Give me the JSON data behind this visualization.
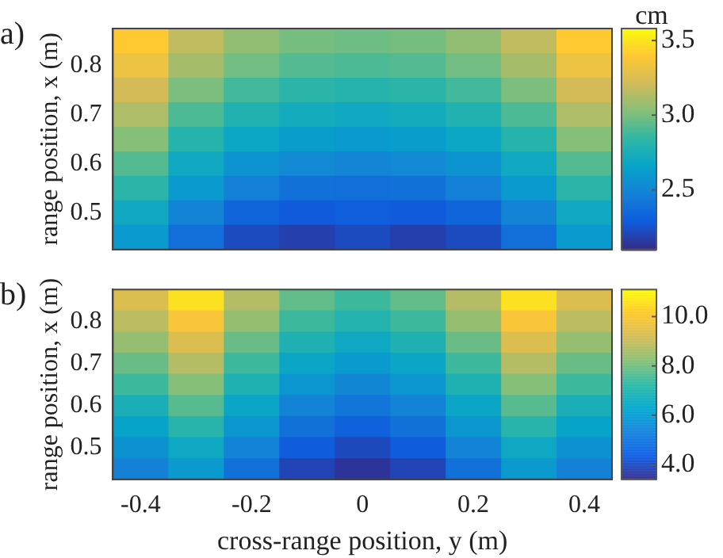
{
  "chart_data": [
    {
      "type": "heatmap",
      "title": "a)",
      "ylabel": "range position, x (m)",
      "clabel": "cm",
      "tick_labels": "y",
      "categories": [
        "-0.4",
        null,
        "-0.2",
        null,
        "0",
        null,
        "0.2",
        null,
        "0.4"
      ],
      "y_categories": [
        null,
        "0.8",
        null,
        "0.7",
        null,
        "0.6",
        null,
        "0.5",
        null
      ],
      "clim": [
        2.1,
        3.58
      ],
      "cticks": [
        {
          "value": 2.5,
          "label": "2.5"
        },
        {
          "value": 3,
          "label": "3.0"
        },
        {
          "value": 3.5,
          "label": "3.5"
        }
      ],
      "cells": [
        [
          3.4,
          3.17,
          3.05,
          2.99,
          2.97,
          2.99,
          3.05,
          3.17,
          3.4
        ],
        [
          3.32,
          3.1,
          2.98,
          2.92,
          2.9,
          2.92,
          2.98,
          3.1,
          3.32
        ],
        [
          3.22,
          3.0,
          2.88,
          2.82,
          2.8,
          2.82,
          2.88,
          3.0,
          3.22
        ],
        [
          3.12,
          2.9,
          2.78,
          2.72,
          2.7,
          2.72,
          2.78,
          2.9,
          3.12
        ],
        [
          3.02,
          2.8,
          2.68,
          2.62,
          2.6,
          2.62,
          2.68,
          2.8,
          3.02
        ],
        [
          2.92,
          2.7,
          2.57,
          2.51,
          2.49,
          2.51,
          2.57,
          2.7,
          2.92
        ],
        [
          2.82,
          2.6,
          2.46,
          2.39,
          2.38,
          2.39,
          2.46,
          2.6,
          2.82
        ],
        [
          2.7,
          2.48,
          2.33,
          2.28,
          2.3,
          2.28,
          2.33,
          2.48,
          2.7
        ],
        [
          2.6,
          2.38,
          2.22,
          2.18,
          2.22,
          2.18,
          2.22,
          2.38,
          2.6
        ]
      ]
    },
    {
      "type": "heatmap",
      "title": "b)",
      "xlabel": "cross-range position, y (m)",
      "ylabel": "range position, x (m)",
      "categories": [
        "-0.4",
        null,
        "-0.2",
        null,
        "0",
        null,
        "0.2",
        null,
        "0.4"
      ],
      "y_categories": [
        null,
        "0.8",
        null,
        "0.7",
        null,
        "0.6",
        null,
        "0.5",
        null
      ],
      "clim": [
        3.4,
        11.1
      ],
      "cticks": [
        {
          "value": 4,
          "label": "4.0"
        },
        {
          "value": 6,
          "label": "6.0"
        },
        {
          "value": 8,
          "label": "8.0"
        },
        {
          "value": 10,
          "label": "10.0"
        }
      ],
      "cells": [
        [
          9.4,
          10.6,
          8.8,
          7.8,
          7.4,
          7.8,
          8.8,
          10.6,
          9.4
        ],
        [
          8.9,
          10.0,
          8.4,
          7.4,
          7.0,
          7.4,
          8.4,
          10.0,
          8.9
        ],
        [
          8.4,
          9.4,
          7.9,
          6.9,
          6.5,
          6.9,
          7.9,
          9.4,
          8.4
        ],
        [
          7.9,
          8.8,
          7.4,
          6.4,
          6.0,
          6.4,
          7.4,
          8.8,
          7.9
        ],
        [
          7.4,
          8.2,
          6.9,
          5.9,
          5.5,
          5.9,
          6.9,
          8.2,
          7.4
        ],
        [
          6.8,
          7.7,
          6.4,
          5.4,
          5.0,
          5.4,
          6.4,
          7.7,
          6.8
        ],
        [
          6.3,
          7.1,
          5.9,
          4.9,
          4.5,
          4.9,
          5.9,
          7.1,
          6.3
        ],
        [
          5.8,
          6.5,
          5.4,
          4.4,
          4.0,
          4.4,
          5.4,
          6.5,
          5.8
        ],
        [
          5.3,
          6.0,
          4.9,
          3.9,
          3.6,
          3.9,
          4.9,
          6.0,
          5.3
        ]
      ]
    }
  ]
}
